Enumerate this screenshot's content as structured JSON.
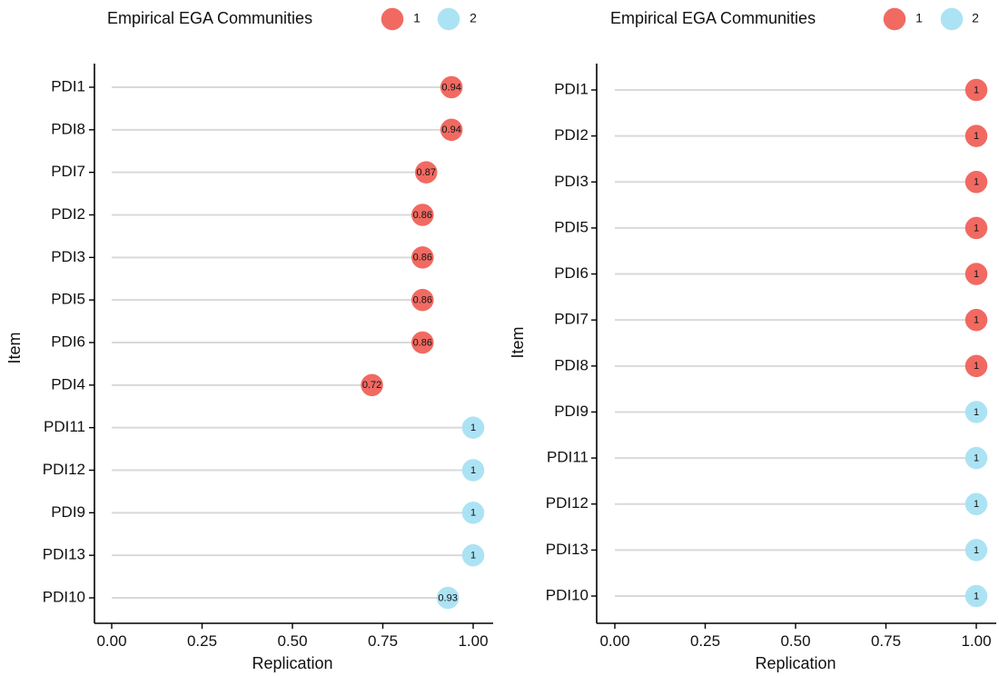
{
  "chart_data": [
    {
      "type": "lollipop",
      "legend": {
        "title": "Empirical EGA Communities",
        "entries": [
          {
            "label": "1",
            "color": "#f0625a"
          },
          {
            "label": "2",
            "color": "#a8e2f3"
          }
        ],
        "placement": "top"
      },
      "xlabel": "Replication",
      "ylabel": "Item",
      "xlim": [
        0,
        1
      ],
      "xticks": [
        "0.00",
        "0.25",
        "0.50",
        "0.75",
        "1.00"
      ],
      "grid": false,
      "points": [
        {
          "item": "PDI1",
          "value": 0.94,
          "community": "1",
          "label": "0.94"
        },
        {
          "item": "PDI8",
          "value": 0.94,
          "community": "1",
          "label": "0.94"
        },
        {
          "item": "PDI7",
          "value": 0.87,
          "community": "1",
          "label": "0.87"
        },
        {
          "item": "PDI2",
          "value": 0.86,
          "community": "1",
          "label": "0.86"
        },
        {
          "item": "PDI3",
          "value": 0.86,
          "community": "1",
          "label": "0.86"
        },
        {
          "item": "PDI5",
          "value": 0.86,
          "community": "1",
          "label": "0.86"
        },
        {
          "item": "PDI6",
          "value": 0.86,
          "community": "1",
          "label": "0.86"
        },
        {
          "item": "PDI4",
          "value": 0.72,
          "community": "1",
          "label": "0.72"
        },
        {
          "item": "PDI11",
          "value": 1.0,
          "community": "2",
          "label": "1"
        },
        {
          "item": "PDI12",
          "value": 1.0,
          "community": "2",
          "label": "1"
        },
        {
          "item": "PDI9",
          "value": 1.0,
          "community": "2",
          "label": "1"
        },
        {
          "item": "PDI13",
          "value": 1.0,
          "community": "2",
          "label": "1"
        },
        {
          "item": "PDI10",
          "value": 0.93,
          "community": "2",
          "label": "0.93"
        }
      ]
    },
    {
      "type": "lollipop",
      "legend": {
        "title": "Empirical EGA Communities",
        "entries": [
          {
            "label": "1",
            "color": "#f0625a"
          },
          {
            "label": "2",
            "color": "#a8e2f3"
          }
        ],
        "placement": "top"
      },
      "xlabel": "Replication",
      "ylabel": "Item",
      "xlim": [
        0,
        1
      ],
      "xticks": [
        "0.00",
        "0.25",
        "0.50",
        "0.75",
        "1.00"
      ],
      "grid": false,
      "points": [
        {
          "item": "PDI1",
          "value": 1.0,
          "community": "1",
          "label": "1"
        },
        {
          "item": "PDI2",
          "value": 1.0,
          "community": "1",
          "label": "1"
        },
        {
          "item": "PDI3",
          "value": 1.0,
          "community": "1",
          "label": "1"
        },
        {
          "item": "PDI5",
          "value": 1.0,
          "community": "1",
          "label": "1"
        },
        {
          "item": "PDI6",
          "value": 1.0,
          "community": "1",
          "label": "1"
        },
        {
          "item": "PDI7",
          "value": 1.0,
          "community": "1",
          "label": "1"
        },
        {
          "item": "PDI8",
          "value": 1.0,
          "community": "1",
          "label": "1"
        },
        {
          "item": "PDI9",
          "value": 1.0,
          "community": "2",
          "label": "1"
        },
        {
          "item": "PDI11",
          "value": 1.0,
          "community": "2",
          "label": "1"
        },
        {
          "item": "PDI12",
          "value": 1.0,
          "community": "2",
          "label": "1"
        },
        {
          "item": "PDI13",
          "value": 1.0,
          "community": "2",
          "label": "1"
        },
        {
          "item": "PDI10",
          "value": 1.0,
          "community": "2",
          "label": "1"
        }
      ]
    }
  ]
}
